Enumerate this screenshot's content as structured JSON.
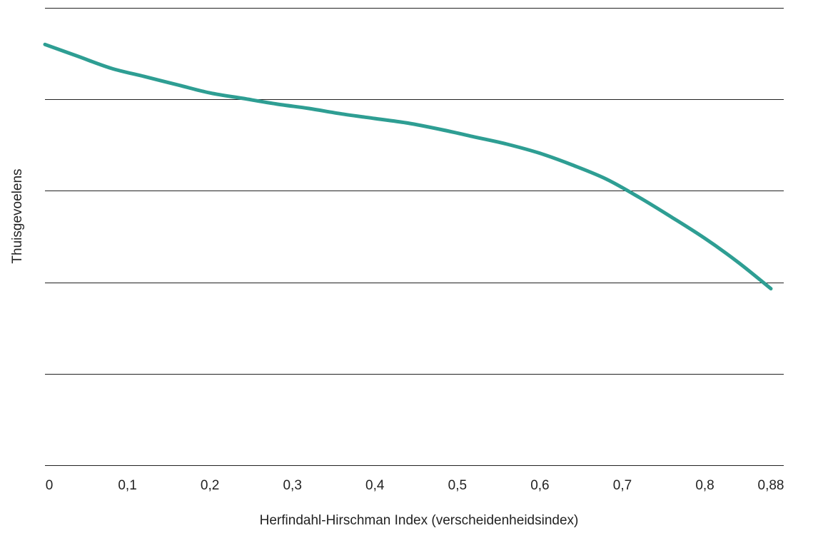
{
  "chart_data": {
    "type": "line",
    "title": "",
    "xlabel": "Herfindahl-Hirschman Index (verscheidenheidsindex)",
    "ylabel": "Thuisgevoelens",
    "xlim": [
      0,
      0.88
    ],
    "ylim": [
      0,
      5
    ],
    "x_ticks": [
      {
        "value": 0,
        "label": "0"
      },
      {
        "value": 0.1,
        "label": "0,1"
      },
      {
        "value": 0.2,
        "label": "0,2"
      },
      {
        "value": 0.3,
        "label": "0,3"
      },
      {
        "value": 0.4,
        "label": "0,4"
      },
      {
        "value": 0.5,
        "label": "0,5"
      },
      {
        "value": 0.6,
        "label": "0,6"
      },
      {
        "value": 0.7,
        "label": "0,7"
      },
      {
        "value": 0.8,
        "label": "0,8"
      },
      {
        "value": 0.88,
        "label": "0,88"
      }
    ],
    "y_gridlines": [
      0,
      1,
      2,
      3,
      4,
      5
    ],
    "y_tick_labels_shown": false,
    "grid": "horizontal",
    "series": [
      {
        "color": "#2e9e93",
        "x": [
          0,
          0.04,
          0.08,
          0.12,
          0.16,
          0.2,
          0.24,
          0.28,
          0.32,
          0.36,
          0.4,
          0.44,
          0.48,
          0.52,
          0.56,
          0.6,
          0.64,
          0.68,
          0.72,
          0.76,
          0.8,
          0.84,
          0.88
        ],
        "y": [
          4.6,
          4.47,
          4.34,
          4.25,
          4.16,
          4.07,
          4.01,
          3.95,
          3.9,
          3.84,
          3.79,
          3.74,
          3.67,
          3.59,
          3.51,
          3.41,
          3.28,
          3.13,
          2.93,
          2.71,
          2.48,
          2.22,
          1.93
        ]
      }
    ]
  }
}
